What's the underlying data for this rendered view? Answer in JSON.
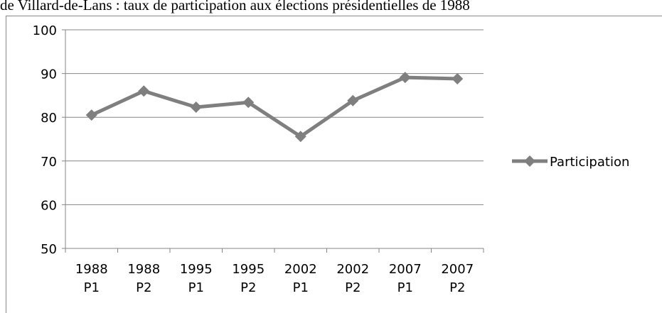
{
  "chart_data": {
    "type": "line",
    "title": "de Villard-de-Lans : taux de participation aux élections présidentielles de 1988",
    "categories": [
      "1988 P1",
      "1988 P2",
      "1995 P1",
      "1995 P2",
      "2002 P1",
      "2002 P2",
      "2007 P1",
      "2007 P2"
    ],
    "series": [
      {
        "name": "Participation",
        "color": "#7f7f7f",
        "values": [
          80.5,
          86,
          82.3,
          83.4,
          75.6,
          83.8,
          89.1,
          88.8
        ]
      }
    ],
    "ylim": [
      50,
      100
    ],
    "yticks": [
      50,
      60,
      70,
      80,
      90,
      100
    ],
    "grid": true,
    "legend": "right"
  }
}
